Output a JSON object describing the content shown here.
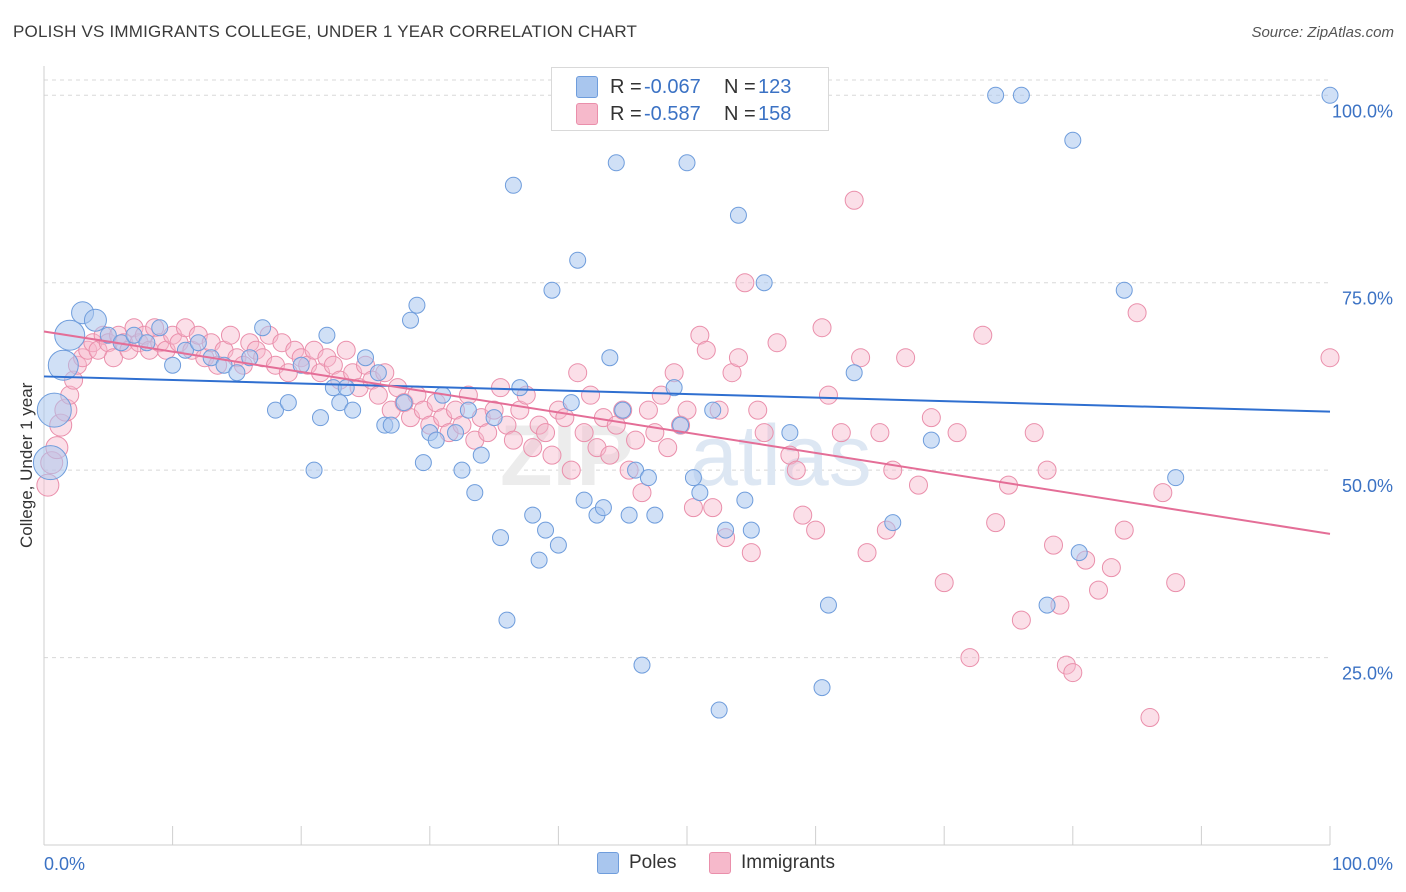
{
  "header": {
    "title": "POLISH VS IMMIGRANTS COLLEGE, UNDER 1 YEAR CORRELATION CHART",
    "source": "Source: ZipAtlas.com"
  },
  "legend": {
    "poles": {
      "r_label": "R =",
      "r_value": "-0.067",
      "n_label": "N =",
      "n_value": "123",
      "color": "#a9c6ee"
    },
    "immigrants": {
      "r_label": "R =",
      "r_value": "-0.587",
      "n_label": "N =",
      "n_value": "158",
      "color": "#f6b9cb"
    }
  },
  "bottom_legend": {
    "poles": "Poles",
    "immigrants": "Immigrants"
  },
  "colors": {
    "poles_fill": "#a9c6ee",
    "poles_stroke": "#6f9ddc",
    "poles_line": "#2f6fd0",
    "imm_fill": "#f6b9cb",
    "imm_stroke": "#ea8fab",
    "imm_line": "#e46e97",
    "tick_text": "#3b72c4",
    "grid": "#d8d8d8"
  },
  "chart_data": {
    "type": "scatter",
    "title": "POLISH VS IMMIGRANTS COLLEGE, UNDER 1 YEAR CORRELATION CHART",
    "xlabel": "",
    "ylabel": "College, Under 1 year",
    "xlim": [
      0,
      100
    ],
    "ylim": [
      0,
      104
    ],
    "x_tick_labels": [
      "0.0%",
      "100.0%"
    ],
    "y_ticks": [
      25,
      50,
      75,
      100
    ],
    "y_tick_labels": [
      "25.0%",
      "50.0%",
      "75.0%",
      "100.0%"
    ],
    "grid": "horizontal dashed",
    "watermark": "ZIPatlas",
    "series": [
      {
        "name": "Poles",
        "trend": {
          "x": [
            0,
            100
          ],
          "y": [
            62.5,
            57.8
          ]
        },
        "points": [
          [
            1.5,
            64
          ],
          [
            0.8,
            58
          ],
          [
            0.5,
            51
          ],
          [
            2,
            68
          ],
          [
            3,
            71
          ],
          [
            4,
            70
          ],
          [
            5,
            68
          ],
          [
            6,
            67
          ],
          [
            7,
            68
          ],
          [
            8,
            67
          ],
          [
            9,
            69
          ],
          [
            10,
            64
          ],
          [
            11,
            66
          ],
          [
            12,
            67
          ],
          [
            13,
            65
          ],
          [
            14,
            64
          ],
          [
            15,
            63
          ],
          [
            16,
            65
          ],
          [
            17,
            69
          ],
          [
            18,
            58
          ],
          [
            19,
            59
          ],
          [
            20,
            64
          ],
          [
            21,
            50
          ],
          [
            21.5,
            57
          ],
          [
            22,
            68
          ],
          [
            22.5,
            61
          ],
          [
            23,
            59
          ],
          [
            23.5,
            61
          ],
          [
            24,
            58
          ],
          [
            25,
            65
          ],
          [
            26,
            63
          ],
          [
            26.5,
            56
          ],
          [
            27,
            56
          ],
          [
            28,
            59
          ],
          [
            28.5,
            70
          ],
          [
            29,
            72
          ],
          [
            29.5,
            51
          ],
          [
            30,
            55
          ],
          [
            30.5,
            54
          ],
          [
            31,
            60
          ],
          [
            32,
            55
          ],
          [
            32.5,
            50
          ],
          [
            33,
            58
          ],
          [
            33.5,
            47
          ],
          [
            34,
            52
          ],
          [
            35,
            57
          ],
          [
            35.5,
            41
          ],
          [
            36,
            30
          ],
          [
            36.5,
            88
          ],
          [
            37,
            61
          ],
          [
            38,
            44
          ],
          [
            38.5,
            38
          ],
          [
            39,
            42
          ],
          [
            39.5,
            74
          ],
          [
            40,
            40
          ],
          [
            41,
            59
          ],
          [
            42,
            46
          ],
          [
            41.5,
            78
          ],
          [
            43,
            44
          ],
          [
            43.5,
            45
          ],
          [
            44,
            65
          ],
          [
            44.5,
            91
          ],
          [
            45,
            58
          ],
          [
            45.5,
            44
          ],
          [
            46,
            50
          ],
          [
            46.5,
            24
          ],
          [
            47,
            49
          ],
          [
            47.5,
            44
          ],
          [
            48,
            100
          ],
          [
            49,
            61
          ],
          [
            49.5,
            56
          ],
          [
            50,
            91
          ],
          [
            50.5,
            49
          ],
          [
            51,
            47
          ],
          [
            52,
            58
          ],
          [
            52.5,
            18
          ],
          [
            53,
            42
          ],
          [
            54,
            84
          ],
          [
            54.5,
            46
          ],
          [
            55,
            42
          ],
          [
            56,
            75
          ],
          [
            58,
            55
          ],
          [
            60,
            100
          ],
          [
            60.5,
            21
          ],
          [
            61,
            32
          ],
          [
            63,
            63
          ],
          [
            66,
            43
          ],
          [
            69,
            54
          ],
          [
            74,
            100
          ],
          [
            76,
            100
          ],
          [
            78,
            32
          ],
          [
            80,
            94
          ],
          [
            80.5,
            39
          ],
          [
            84,
            74
          ],
          [
            88,
            49
          ],
          [
            100,
            100
          ]
        ]
      },
      {
        "name": "Immigrants",
        "trend": {
          "x": [
            0,
            100
          ],
          "y": [
            68.5,
            41.5
          ]
        },
        "points": [
          [
            0.3,
            48
          ],
          [
            0.6,
            51
          ],
          [
            1,
            53
          ],
          [
            1.3,
            56
          ],
          [
            1.7,
            58
          ],
          [
            2,
            60
          ],
          [
            2.3,
            62
          ],
          [
            2.6,
            64
          ],
          [
            3,
            65
          ],
          [
            3.4,
            66
          ],
          [
            3.8,
            67
          ],
          [
            4.2,
            66
          ],
          [
            4.6,
            68
          ],
          [
            5,
            67
          ],
          [
            5.4,
            65
          ],
          [
            5.8,
            68
          ],
          [
            6.2,
            67
          ],
          [
            6.6,
            66
          ],
          [
            7,
            69
          ],
          [
            7.4,
            67
          ],
          [
            7.8,
            68
          ],
          [
            8.2,
            66
          ],
          [
            8.6,
            69
          ],
          [
            9,
            67
          ],
          [
            9.5,
            66
          ],
          [
            10,
            68
          ],
          [
            10.5,
            67
          ],
          [
            11,
            69
          ],
          [
            11.5,
            66
          ],
          [
            12,
            68
          ],
          [
            12.5,
            65
          ],
          [
            13,
            67
          ],
          [
            13.5,
            64
          ],
          [
            14,
            66
          ],
          [
            14.5,
            68
          ],
          [
            15,
            65
          ],
          [
            15.5,
            64
          ],
          [
            16,
            67
          ],
          [
            16.5,
            66
          ],
          [
            17,
            65
          ],
          [
            17.5,
            68
          ],
          [
            18,
            64
          ],
          [
            18.5,
            67
          ],
          [
            19,
            63
          ],
          [
            19.5,
            66
          ],
          [
            20,
            65
          ],
          [
            20.5,
            64
          ],
          [
            21,
            66
          ],
          [
            21.5,
            63
          ],
          [
            22,
            65
          ],
          [
            22.5,
            64
          ],
          [
            23,
            62
          ],
          [
            23.5,
            66
          ],
          [
            24,
            63
          ],
          [
            24.5,
            61
          ],
          [
            25,
            64
          ],
          [
            25.5,
            62
          ],
          [
            26,
            60
          ],
          [
            26.5,
            63
          ],
          [
            27,
            58
          ],
          [
            27.5,
            61
          ],
          [
            28,
            59
          ],
          [
            28.5,
            57
          ],
          [
            29,
            60
          ],
          [
            29.5,
            58
          ],
          [
            30,
            56
          ],
          [
            30.5,
            59
          ],
          [
            31,
            57
          ],
          [
            31.5,
            55
          ],
          [
            32,
            58
          ],
          [
            32.5,
            56
          ],
          [
            33,
            60
          ],
          [
            33.5,
            54
          ],
          [
            34,
            57
          ],
          [
            34.5,
            55
          ],
          [
            35,
            58
          ],
          [
            35.5,
            61
          ],
          [
            36,
            56
          ],
          [
            36.5,
            54
          ],
          [
            37,
            58
          ],
          [
            37.5,
            60
          ],
          [
            38,
            53
          ],
          [
            38.5,
            56
          ],
          [
            39,
            55
          ],
          [
            39.5,
            52
          ],
          [
            40,
            58
          ],
          [
            40.5,
            57
          ],
          [
            41,
            50
          ],
          [
            41.5,
            63
          ],
          [
            42,
            55
          ],
          [
            42.5,
            60
          ],
          [
            43,
            53
          ],
          [
            43.5,
            57
          ],
          [
            44,
            52
          ],
          [
            44.5,
            56
          ],
          [
            45,
            58
          ],
          [
            45.5,
            50
          ],
          [
            46,
            54
          ],
          [
            46.5,
            47
          ],
          [
            47,
            58
          ],
          [
            47.5,
            55
          ],
          [
            48,
            60
          ],
          [
            48.5,
            53
          ],
          [
            49,
            63
          ],
          [
            49.5,
            56
          ],
          [
            50,
            58
          ],
          [
            50.5,
            45
          ],
          [
            51,
            68
          ],
          [
            51.5,
            66
          ],
          [
            52,
            45
          ],
          [
            52.5,
            58
          ],
          [
            53,
            41
          ],
          [
            53.5,
            63
          ],
          [
            54,
            65
          ],
          [
            54.5,
            75
          ],
          [
            55,
            39
          ],
          [
            55.5,
            58
          ],
          [
            56,
            55
          ],
          [
            57,
            67
          ],
          [
            58,
            52
          ],
          [
            58.5,
            50
          ],
          [
            59,
            44
          ],
          [
            60,
            42
          ],
          [
            60.5,
            69
          ],
          [
            61,
            60
          ],
          [
            62,
            55
          ],
          [
            63,
            86
          ],
          [
            63.5,
            65
          ],
          [
            64,
            39
          ],
          [
            65,
            55
          ],
          [
            65.5,
            42
          ],
          [
            66,
            50
          ],
          [
            67,
            65
          ],
          [
            68,
            48
          ],
          [
            69,
            57
          ],
          [
            70,
            35
          ],
          [
            71,
            55
          ],
          [
            72,
            25
          ],
          [
            73,
            68
          ],
          [
            74,
            43
          ],
          [
            75,
            48
          ],
          [
            76,
            30
          ],
          [
            77,
            55
          ],
          [
            78,
            50
          ],
          [
            78.5,
            40
          ],
          [
            79,
            32
          ],
          [
            79.5,
            24
          ],
          [
            80,
            23
          ],
          [
            81,
            38
          ],
          [
            82,
            34
          ],
          [
            83,
            37
          ],
          [
            84,
            42
          ],
          [
            85,
            71
          ],
          [
            86,
            17
          ],
          [
            87,
            47
          ],
          [
            88,
            35
          ],
          [
            100,
            65
          ]
        ]
      }
    ]
  }
}
